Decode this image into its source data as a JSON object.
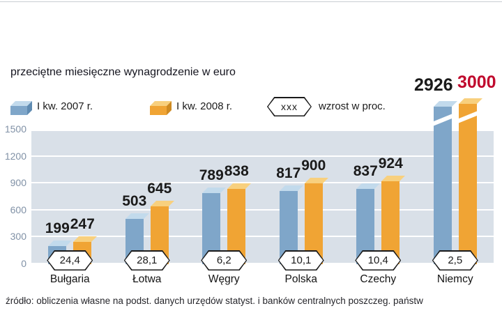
{
  "title": "przeciętne miesięczne wynagrodzenie w euro",
  "legend": {
    "item_2007": "I kw. 2007 r.",
    "item_2008": "I kw. 2008 r.",
    "growth_symbol": "xxx",
    "growth_label": "wzrost w proc."
  },
  "source": "źródło: obliczenia własne na podst. danych urzędów statyst. i banków centralnych poszczeg. państw",
  "colors": {
    "blue_front": "#7FA6C9",
    "blue_top": "#C2DAEC",
    "blue_side": "#5F8BB2",
    "orange_front": "#F0A434",
    "orange_top": "#F8D07E",
    "orange_side": "#CE8A22",
    "red_label": "#C00A2E",
    "chart_bg": "#D9E0E8",
    "grid": "#FFFFFF",
    "tick_text": "#8091A6",
    "text": "#1A1A1A"
  },
  "chart_data": {
    "type": "bar",
    "title": "przeciętne miesięczne wynagrodzenie w euro",
    "categories": [
      "Bułgaria",
      "Łotwa",
      "Węgry",
      "Polska",
      "Czechy",
      "Niemcy"
    ],
    "series": [
      {
        "name": "I kw. 2007 r.",
        "values": [
          199,
          503,
          789,
          817,
          837,
          2926
        ]
      },
      {
        "name": "I kw. 2008 r.",
        "values": [
          247,
          645,
          838,
          900,
          924,
          3000
        ]
      }
    ],
    "growth_percent": [
      "24,4",
      "28,1",
      "6,2",
      "10,1",
      "10,4",
      "2,5"
    ],
    "yticks": [
      0,
      300,
      600,
      900,
      1200,
      1500
    ],
    "ylim": [
      0,
      1500
    ],
    "grid": true,
    "legend_position": "top",
    "axis_break_note": "Niemcy bars exceed the 1500 axis maximum and are drawn with a break",
    "label_highlight": {
      "series_index": 1,
      "category_index": 5
    }
  }
}
